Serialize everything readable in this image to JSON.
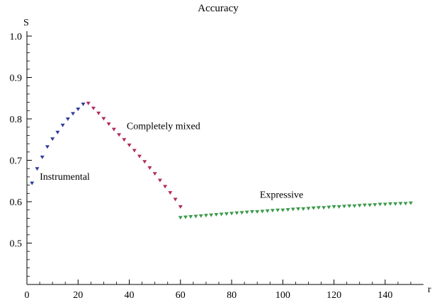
{
  "chart_data": {
    "type": "scatter",
    "title": "Accuracy",
    "xlabel": "r",
    "ylabel": "S",
    "xlim": [
      0,
      150
    ],
    "ylim": [
      0.4,
      1.0
    ],
    "x_ticks": [
      "0",
      "20",
      "40",
      "60",
      "80",
      "100",
      "120",
      "140"
    ],
    "y_ticks": [
      "0.5",
      "0.6",
      "0.7",
      "0.8",
      "0.9",
      "1.0"
    ],
    "grid": false,
    "annotations": [
      {
        "text": "Instrumental",
        "x": 5,
        "y": 0.653
      },
      {
        "text": "Completely mixed",
        "x": 39,
        "y": 0.775
      },
      {
        "text": "Expressive",
        "x": 91,
        "y": 0.609
      }
    ],
    "series": [
      {
        "color": "#2e3d9c",
        "points": [
          [
            2,
            0.645
          ],
          [
            4,
            0.68
          ],
          [
            6,
            0.708
          ],
          [
            8,
            0.733
          ],
          [
            10,
            0.752
          ],
          [
            12,
            0.768
          ],
          [
            14,
            0.785
          ],
          [
            16,
            0.8
          ],
          [
            18,
            0.813
          ],
          [
            20,
            0.824
          ],
          [
            22,
            0.836
          ]
        ]
      },
      {
        "color": "#b02a5e",
        "points": [
          [
            24,
            0.838
          ],
          [
            26,
            0.826
          ],
          [
            28,
            0.814
          ],
          [
            30,
            0.801
          ],
          [
            32,
            0.788
          ],
          [
            34,
            0.775
          ],
          [
            36,
            0.762
          ],
          [
            38,
            0.75
          ],
          [
            40,
            0.737
          ],
          [
            42,
            0.724
          ],
          [
            44,
            0.71
          ],
          [
            46,
            0.697
          ],
          [
            48,
            0.682
          ],
          [
            50,
            0.668
          ],
          [
            52,
            0.652
          ],
          [
            54,
            0.637
          ],
          [
            56,
            0.622
          ],
          [
            58,
            0.606
          ],
          [
            60,
            0.588
          ]
        ]
      },
      {
        "color": "#3a9a4a",
        "points": [
          [
            60,
            0.562
          ],
          [
            62,
            0.563
          ],
          [
            64,
            0.564
          ],
          [
            66,
            0.565
          ],
          [
            68,
            0.566
          ],
          [
            70,
            0.567
          ],
          [
            72,
            0.568
          ],
          [
            74,
            0.569
          ],
          [
            76,
            0.57
          ],
          [
            78,
            0.571
          ],
          [
            80,
            0.572
          ],
          [
            82,
            0.573
          ],
          [
            84,
            0.574
          ],
          [
            86,
            0.575
          ],
          [
            88,
            0.576
          ],
          [
            90,
            0.576
          ],
          [
            92,
            0.577
          ],
          [
            94,
            0.578
          ],
          [
            96,
            0.579
          ],
          [
            98,
            0.58
          ],
          [
            100,
            0.58
          ],
          [
            102,
            0.581
          ],
          [
            104,
            0.582
          ],
          [
            106,
            0.583
          ],
          [
            108,
            0.583
          ],
          [
            110,
            0.584
          ],
          [
            112,
            0.585
          ],
          [
            114,
            0.586
          ],
          [
            116,
            0.586
          ],
          [
            118,
            0.587
          ],
          [
            120,
            0.588
          ],
          [
            122,
            0.588
          ],
          [
            124,
            0.589
          ],
          [
            126,
            0.59
          ],
          [
            128,
            0.59
          ],
          [
            130,
            0.591
          ],
          [
            132,
            0.592
          ],
          [
            134,
            0.592
          ],
          [
            136,
            0.593
          ],
          [
            138,
            0.594
          ],
          [
            140,
            0.594
          ],
          [
            142,
            0.595
          ],
          [
            144,
            0.595
          ],
          [
            146,
            0.596
          ],
          [
            148,
            0.596
          ],
          [
            150,
            0.597
          ]
        ]
      }
    ]
  }
}
